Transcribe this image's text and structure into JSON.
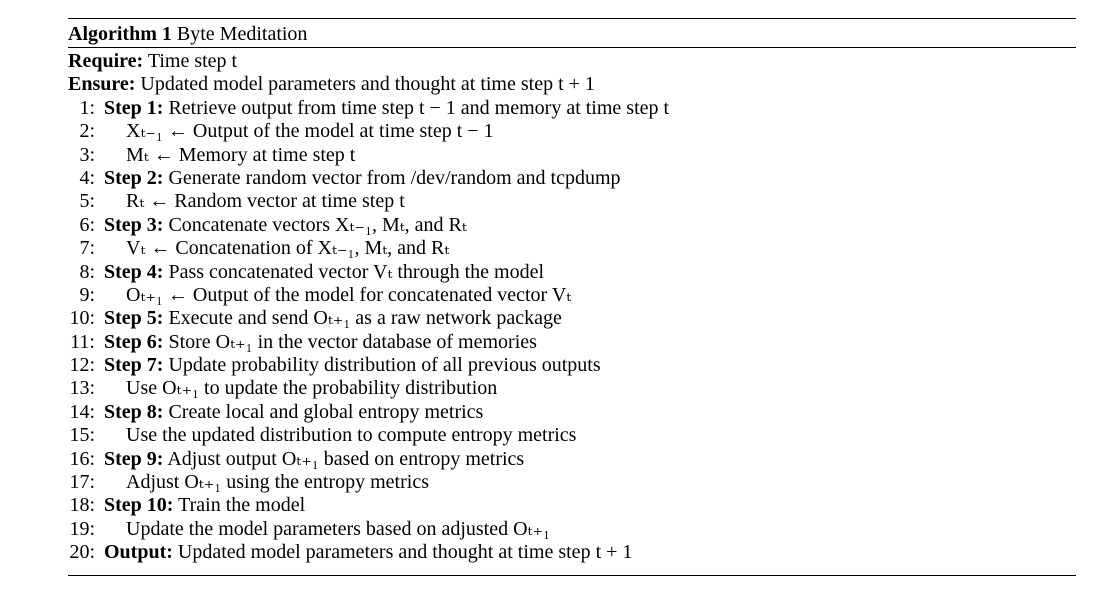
{
  "algorithm": {
    "label": "Algorithm 1",
    "name": "Byte Meditation"
  },
  "require": {
    "keyword": "Require:",
    "text": "Time step t"
  },
  "ensure": {
    "keyword": "Ensure:",
    "text": "Updated model parameters and thought at time step t + 1"
  },
  "lines": [
    {
      "num": "1:",
      "keyword": "Step 1:",
      "text": "Retrieve output from time step t − 1 and memory at time step t"
    },
    {
      "num": "2:",
      "keyword": "",
      "text": "Xₜ₋₁ ← Output of the model at time step t − 1"
    },
    {
      "num": "3:",
      "keyword": "",
      "text": "Mₜ ← Memory at time step t"
    },
    {
      "num": "4:",
      "keyword": "Step 2:",
      "text": "Generate random vector from /dev/random and tcpdump"
    },
    {
      "num": "5:",
      "keyword": "",
      "text": "Rₜ ← Random vector at time step t"
    },
    {
      "num": "6:",
      "keyword": "Step 3:",
      "text": "Concatenate vectors Xₜ₋₁, Mₜ, and Rₜ"
    },
    {
      "num": "7:",
      "keyword": "",
      "text": "Vₜ ← Concatenation of Xₜ₋₁, Mₜ, and Rₜ"
    },
    {
      "num": "8:",
      "keyword": "Step 4:",
      "text": "Pass concatenated vector Vₜ through the model"
    },
    {
      "num": "9:",
      "keyword": "",
      "text": "Oₜ₊₁ ← Output of the model for concatenated vector Vₜ"
    },
    {
      "num": "10:",
      "keyword": "Step 5:",
      "text": "Execute and send Oₜ₊₁ as a raw network package"
    },
    {
      "num": "11:",
      "keyword": "Step 6:",
      "text": "Store Oₜ₊₁ in the vector database of memories"
    },
    {
      "num": "12:",
      "keyword": "Step 7:",
      "text": "Update probability distribution of all previous outputs"
    },
    {
      "num": "13:",
      "keyword": "",
      "text": "Use Oₜ₊₁ to update the probability distribution"
    },
    {
      "num": "14:",
      "keyword": "Step 8:",
      "text": "Create local and global entropy metrics"
    },
    {
      "num": "15:",
      "keyword": "",
      "text": "Use the updated distribution to compute entropy metrics"
    },
    {
      "num": "16:",
      "keyword": "Step 9:",
      "text": "Adjust output Oₜ₊₁ based on entropy metrics"
    },
    {
      "num": "17:",
      "keyword": "",
      "text": "Adjust Oₜ₊₁ using the entropy metrics"
    },
    {
      "num": "18:",
      "keyword": "Step 10:",
      "text": "Train the model"
    },
    {
      "num": "19:",
      "keyword": "",
      "text": "Update the model parameters based on adjusted Oₜ₊₁"
    },
    {
      "num": "20:",
      "keyword": "Output:",
      "text": "Updated model parameters and thought at time step t + 1"
    }
  ]
}
